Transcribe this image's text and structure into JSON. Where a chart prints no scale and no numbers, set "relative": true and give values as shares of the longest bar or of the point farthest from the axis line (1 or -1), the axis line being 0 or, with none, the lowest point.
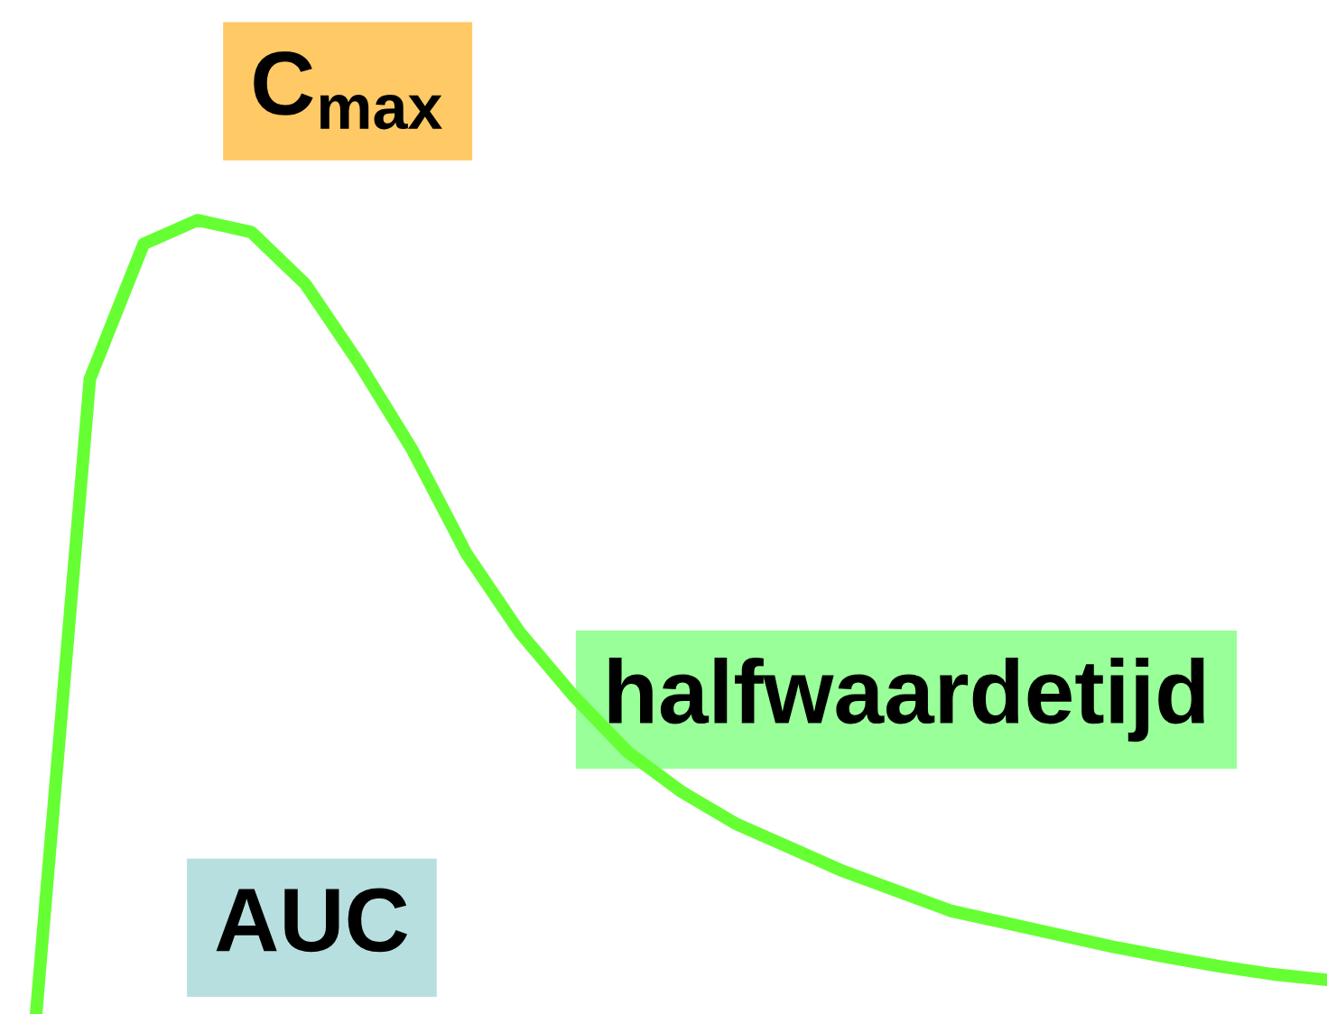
{
  "chart_data": {
    "type": "line",
    "relative": true,
    "categories": [
      null,
      null,
      null,
      null,
      null,
      null,
      null,
      null,
      null,
      null,
      null,
      null,
      null,
      null,
      null,
      null,
      null,
      null,
      null,
      null,
      null,
      null,
      null,
      null,
      null
    ],
    "series": [
      {
        "color": "#66ff33",
        "values": [
          0,
          0.8,
          0.97,
          1.0,
          0.985,
          0.92,
          0.82,
          0.71,
          0.58,
          0.48,
          0.4,
          0.33,
          0.28,
          0.24,
          0.21,
          0.18,
          0.155,
          0.13,
          0.115,
          0.1,
          0.085,
          0.072,
          0.06,
          0.05,
          0.043
        ]
      }
    ],
    "annotations": [
      "C$_{max}$",
      "halfwaardetijd",
      "AUC"
    ],
    "legend": false,
    "marker": "none",
    "line_style": "solid"
  }
}
